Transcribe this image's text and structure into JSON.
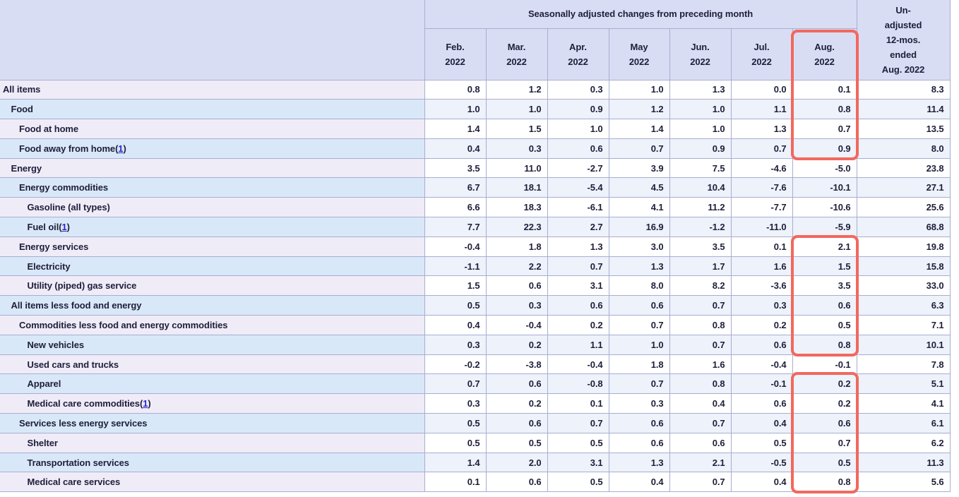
{
  "colors": {
    "highlight": "#f2685e",
    "header_bg": "#d9ddf3",
    "row_label_lavender": "#efecf8",
    "row_label_blue": "#d9e8f8",
    "row_data_white": "#ffffff",
    "row_data_blue": "#edf2fb",
    "gridline": "#a8aed0",
    "text": "#1e1e3a",
    "footnote_link": "#2727cf"
  },
  "table": {
    "header": {
      "group_label": "Seasonally adjusted changes from preceding month",
      "months": [
        "Feb.",
        "Mar.",
        "Apr.",
        "May",
        "Jun.",
        "Jul.",
        "Aug."
      ],
      "year": "2022",
      "unadjusted_lines": [
        "Un-",
        "adjusted",
        "12-mos.",
        "ended",
        "Aug. 2022"
      ]
    }
  },
  "highlights": {
    "color": "#f2685e",
    "column": "Aug. 2022",
    "boxes": [
      {
        "includes_header": true,
        "from_row": 0,
        "to_row": 3,
        "span_label": "All items through Food away from home"
      },
      {
        "includes_header": false,
        "from_row": 8,
        "to_row": 13,
        "span_label": "Energy services through New vehicles"
      },
      {
        "includes_header": false,
        "from_row": 15,
        "to_row": 20,
        "span_label": "Apparel through Medical care services"
      }
    ]
  },
  "chart_data": {
    "type": "table",
    "column_group_header": "Seasonally adjusted changes from preceding month",
    "columns": [
      "Feb. 2022",
      "Mar. 2022",
      "Apr. 2022",
      "May 2022",
      "Jun. 2022",
      "Jul. 2022",
      "Aug. 2022",
      "Un-adjusted 12-mos. ended Aug. 2022"
    ],
    "rows": [
      {
        "label": "All items",
        "indent": 0,
        "values": [
          "0.8",
          "1.2",
          "0.3",
          "1.0",
          "1.3",
          "0.0",
          "0.1",
          "8.3"
        ]
      },
      {
        "label": "Food",
        "indent": 1,
        "values": [
          "1.0",
          "1.0",
          "0.9",
          "1.2",
          "1.0",
          "1.1",
          "0.8",
          "11.4"
        ]
      },
      {
        "label": "Food at home",
        "indent": 2,
        "values": [
          "1.4",
          "1.5",
          "1.0",
          "1.4",
          "1.0",
          "1.3",
          "0.7",
          "13.5"
        ]
      },
      {
        "label": "Food away from home",
        "indent": 2,
        "footnote": "1",
        "values": [
          "0.4",
          "0.3",
          "0.6",
          "0.7",
          "0.9",
          "0.7",
          "0.9",
          "8.0"
        ]
      },
      {
        "label": "Energy",
        "indent": 1,
        "values": [
          "3.5",
          "11.0",
          "-2.7",
          "3.9",
          "7.5",
          "-4.6",
          "-5.0",
          "23.8"
        ]
      },
      {
        "label": "Energy commodities",
        "indent": 2,
        "values": [
          "6.7",
          "18.1",
          "-5.4",
          "4.5",
          "10.4",
          "-7.6",
          "-10.1",
          "27.1"
        ]
      },
      {
        "label": "Gasoline (all types)",
        "indent": 3,
        "values": [
          "6.6",
          "18.3",
          "-6.1",
          "4.1",
          "11.2",
          "-7.7",
          "-10.6",
          "25.6"
        ]
      },
      {
        "label": "Fuel oil",
        "indent": 3,
        "footnote": "1",
        "values": [
          "7.7",
          "22.3",
          "2.7",
          "16.9",
          "-1.2",
          "-11.0",
          "-5.9",
          "68.8"
        ]
      },
      {
        "label": "Energy services",
        "indent": 2,
        "values": [
          "-0.4",
          "1.8",
          "1.3",
          "3.0",
          "3.5",
          "0.1",
          "2.1",
          "19.8"
        ]
      },
      {
        "label": "Electricity",
        "indent": 3,
        "values": [
          "-1.1",
          "2.2",
          "0.7",
          "1.3",
          "1.7",
          "1.6",
          "1.5",
          "15.8"
        ]
      },
      {
        "label": "Utility (piped) gas service",
        "indent": 3,
        "values": [
          "1.5",
          "0.6",
          "3.1",
          "8.0",
          "8.2",
          "-3.6",
          "3.5",
          "33.0"
        ]
      },
      {
        "label": "All items less food and energy",
        "indent": 1,
        "values": [
          "0.5",
          "0.3",
          "0.6",
          "0.6",
          "0.7",
          "0.3",
          "0.6",
          "6.3"
        ]
      },
      {
        "label": "Commodities less food and energy commodities",
        "indent": 2,
        "values": [
          "0.4",
          "-0.4",
          "0.2",
          "0.7",
          "0.8",
          "0.2",
          "0.5",
          "7.1"
        ]
      },
      {
        "label": "New vehicles",
        "indent": 3,
        "values": [
          "0.3",
          "0.2",
          "1.1",
          "1.0",
          "0.7",
          "0.6",
          "0.8",
          "10.1"
        ]
      },
      {
        "label": "Used cars and trucks",
        "indent": 3,
        "values": [
          "-0.2",
          "-3.8",
          "-0.4",
          "1.8",
          "1.6",
          "-0.4",
          "-0.1",
          "7.8"
        ]
      },
      {
        "label": "Apparel",
        "indent": 3,
        "values": [
          "0.7",
          "0.6",
          "-0.8",
          "0.7",
          "0.8",
          "-0.1",
          "0.2",
          "5.1"
        ]
      },
      {
        "label": "Medical care commodities",
        "indent": 3,
        "footnote": "1",
        "values": [
          "0.3",
          "0.2",
          "0.1",
          "0.3",
          "0.4",
          "0.6",
          "0.2",
          "4.1"
        ]
      },
      {
        "label": "Services less energy services",
        "indent": 2,
        "values": [
          "0.5",
          "0.6",
          "0.7",
          "0.6",
          "0.7",
          "0.4",
          "0.6",
          "6.1"
        ]
      },
      {
        "label": "Shelter",
        "indent": 3,
        "values": [
          "0.5",
          "0.5",
          "0.5",
          "0.6",
          "0.6",
          "0.5",
          "0.7",
          "6.2"
        ]
      },
      {
        "label": "Transportation services",
        "indent": 3,
        "values": [
          "1.4",
          "2.0",
          "3.1",
          "1.3",
          "2.1",
          "-0.5",
          "0.5",
          "11.3"
        ]
      },
      {
        "label": "Medical care services",
        "indent": 3,
        "values": [
          "0.1",
          "0.6",
          "0.5",
          "0.4",
          "0.7",
          "0.4",
          "0.8",
          "5.6"
        ]
      }
    ]
  }
}
